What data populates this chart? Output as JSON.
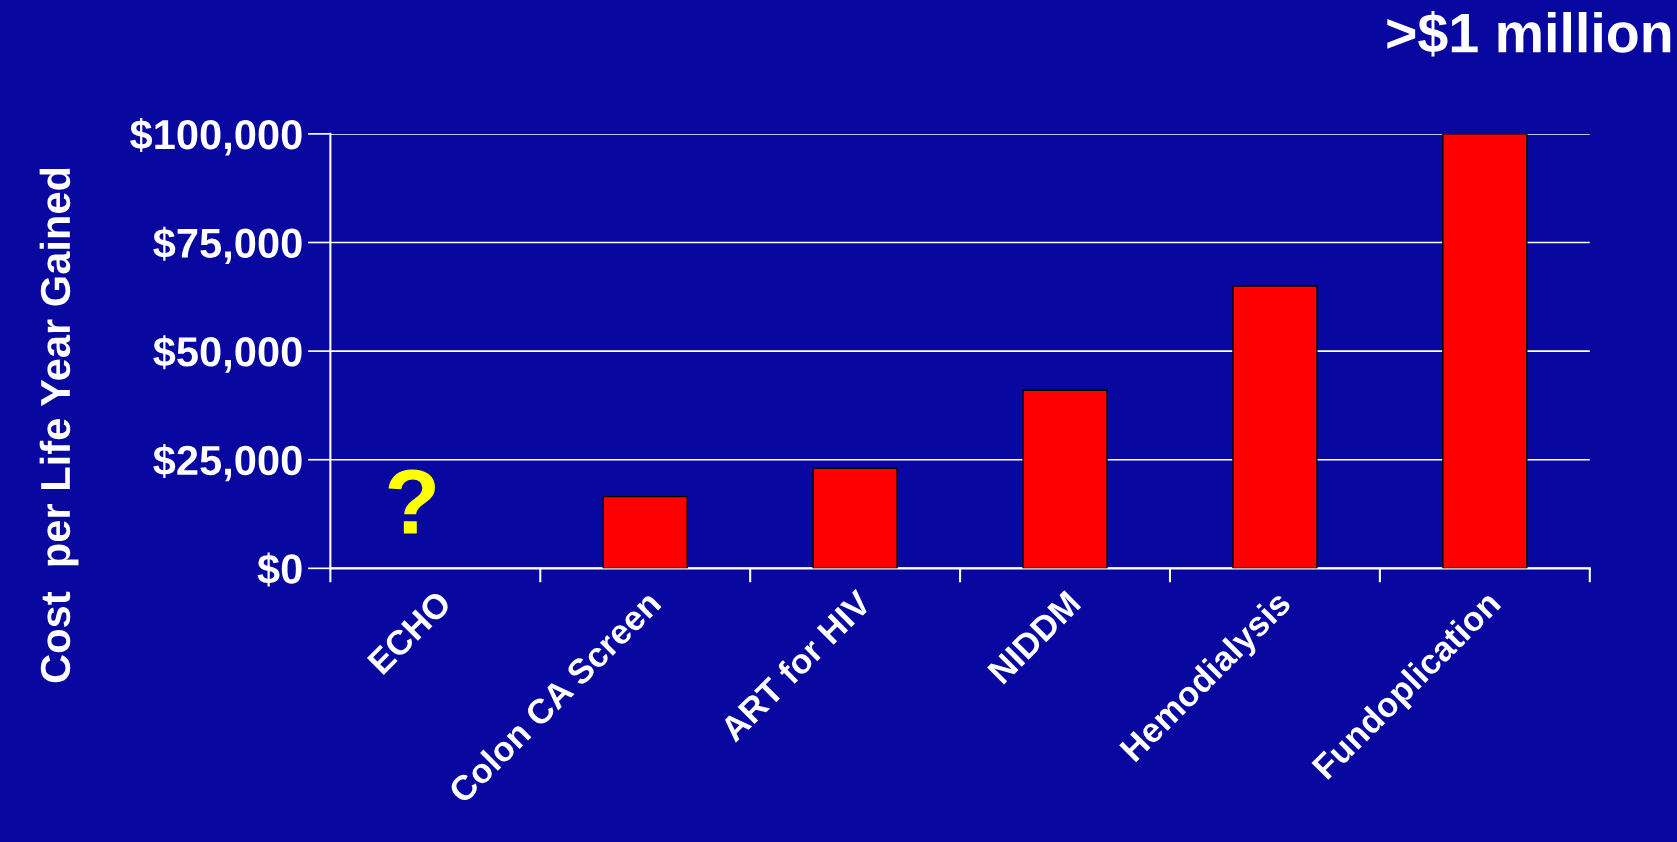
{
  "chart_data": {
    "type": "bar",
    "ylabel": "Cost  per Life Year Gained",
    "categories": [
      "ECHO",
      "Colon CA Screen",
      "ART for HIV",
      "NIDDM",
      "Hemodialysis",
      "Fundoplication"
    ],
    "values": [
      null,
      16500,
      23000,
      41000,
      65000,
      100000
    ],
    "color": "#ff0000",
    "ylim": [
      0,
      100000
    ],
    "yticks": [
      {
        "value": 0,
        "label": "$0"
      },
      {
        "value": 25000,
        "label": "$25,000"
      },
      {
        "value": 50000,
        "label": "$50,000"
      },
      {
        "value": 75000,
        "label": "$75,000"
      },
      {
        "value": 100000,
        "label": "$100,000"
      }
    ],
    "grid": "y",
    "legend": false,
    "annotations": [
      "?",
      ">$1 million"
    ]
  }
}
